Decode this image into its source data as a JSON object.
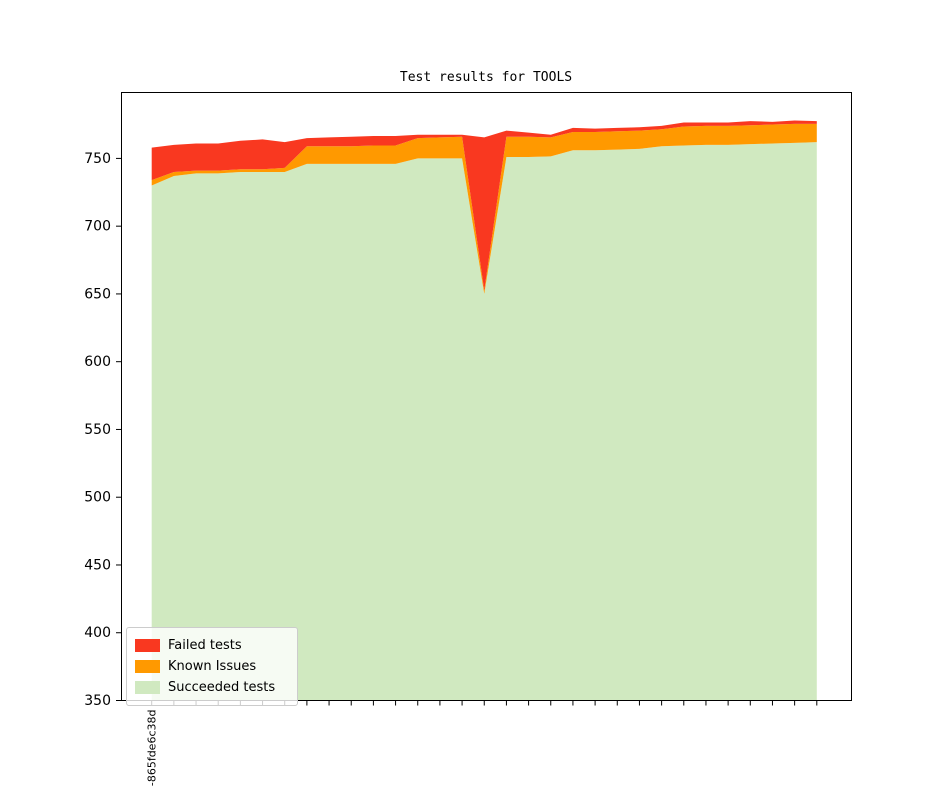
{
  "chart_data": {
    "type": "area",
    "stacked": true,
    "title": "Test results for TOOLS",
    "xlabel": "",
    "ylabel": "",
    "y_ticks": [
      350,
      400,
      450,
      500,
      550,
      600,
      650,
      700,
      750
    ],
    "ylim": [
      350,
      799
    ],
    "grid": false,
    "legend_position": "lower left",
    "x_tick_labels": [
      "1-865fde6c38d",
      "",
      "",
      "",
      "",
      "",
      "",
      "",
      "",
      "",
      "",
      "",
      "",
      "",
      "",
      "",
      "",
      "",
      "",
      "",
      "",
      "",
      "",
      "",
      "",
      "",
      "",
      "",
      "",
      "",
      ""
    ],
    "series": [
      {
        "name": "Failed tests",
        "color": "#f93820",
        "values": [
          24,
          20,
          20,
          20,
          21,
          22,
          19,
          6,
          6.5,
          7,
          7,
          7,
          2.5,
          2,
          1.5,
          113,
          4.5,
          3,
          2,
          3,
          2.5,
          2.5,
          2.5,
          2.5,
          3,
          2.5,
          2.5,
          3,
          2,
          2.5,
          2
        ]
      },
      {
        "name": "Known Issues",
        "color": "#ff9900",
        "values": [
          4,
          3,
          2,
          2,
          2,
          2,
          3,
          13,
          13,
          13,
          13.5,
          13.5,
          15,
          15.5,
          16,
          2.5,
          15,
          15,
          14,
          13.5,
          13.5,
          13.5,
          13.5,
          12.5,
          14,
          14,
          14,
          14,
          14,
          14,
          13.5
        ]
      },
      {
        "name": "Succeeded tests",
        "color": "#d0e9c0",
        "values": [
          730,
          737,
          739,
          739,
          740,
          740,
          740,
          746,
          746,
          746,
          746,
          746,
          750,
          750,
          750,
          650,
          751,
          751,
          751.5,
          756,
          756,
          756.5,
          757,
          759,
          759.5,
          760,
          760,
          760.5,
          761,
          761.5,
          762
        ]
      }
    ]
  }
}
